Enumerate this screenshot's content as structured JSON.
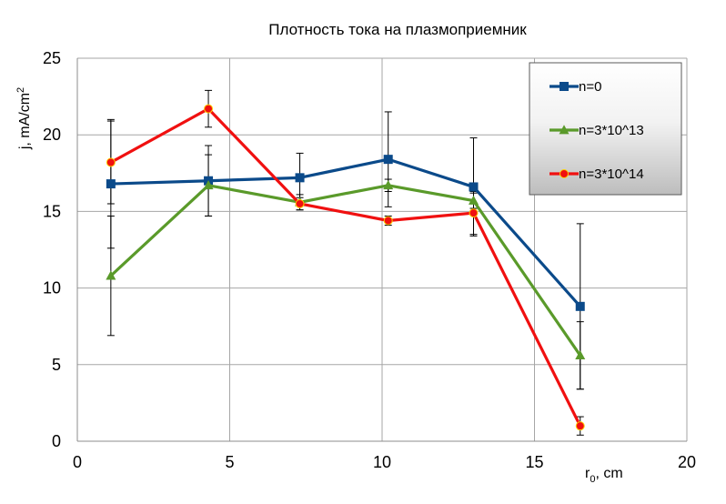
{
  "chart_data": {
    "type": "line",
    "title": "Плотность тока на плазмоприемник",
    "xlabel": {
      "main": "r",
      "sub": "0",
      "unit": ", cm"
    },
    "ylabel": {
      "main": "j, mA/cm",
      "sup": "2"
    },
    "xlim": [
      0,
      20
    ],
    "ylim": [
      0,
      25
    ],
    "xticks": [
      0,
      5,
      10,
      15,
      20
    ],
    "yticks": [
      0,
      5,
      10,
      15,
      20,
      25
    ],
    "grid": true,
    "legend_position": "top-right",
    "series": [
      {
        "name": "n=0",
        "color": "#0b4a8a",
        "marker": "square",
        "x": [
          1.1,
          4.3,
          7.3,
          10.2,
          13.0,
          16.5
        ],
        "y": [
          16.8,
          17.0,
          17.2,
          18.4,
          16.6,
          8.8
        ],
        "err": [
          4.2,
          2.3,
          1.6,
          3.1,
          3.2,
          5.4
        ]
      },
      {
        "name": "n=3*10^13",
        "color": "#5a9a2a",
        "marker": "triangle",
        "x": [
          1.1,
          4.3,
          7.3,
          10.2,
          13.0,
          16.5
        ],
        "y": [
          10.8,
          16.7,
          15.6,
          16.7,
          15.7,
          5.6
        ],
        "err": [
          3.9,
          2.0,
          0.5,
          0.4,
          0.5,
          2.2
        ]
      },
      {
        "name": "n=3*10^14",
        "color": "#f01010",
        "marker": "circle",
        "x": [
          1.1,
          4.3,
          7.3,
          10.2,
          13.0,
          16.5
        ],
        "y": [
          18.2,
          21.7,
          15.5,
          14.4,
          14.9,
          1.0
        ],
        "err": [
          2.7,
          1.2,
          0.4,
          0.3,
          1.4,
          0.6
        ]
      }
    ]
  }
}
